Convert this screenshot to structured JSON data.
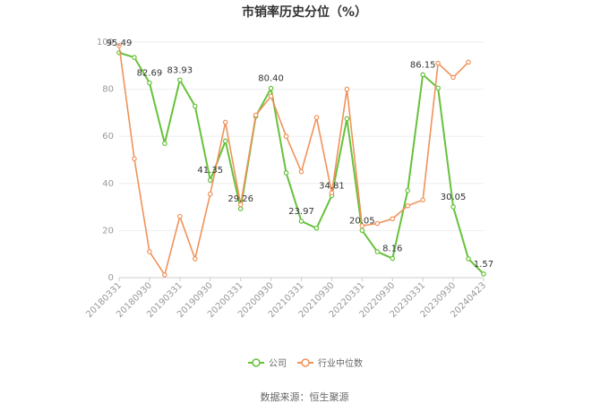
{
  "chart_data": {
    "type": "line",
    "title": "市销率历史分位（%）",
    "ylim": [
      0,
      100
    ],
    "yticks": [
      0,
      20,
      40,
      60,
      80,
      100
    ],
    "x_labels": [
      "20180331",
      "20180930",
      "20190331",
      "20190930",
      "20200331",
      "20200930",
      "20210331",
      "20210930",
      "20220331",
      "20220930",
      "20230331",
      "20230930",
      "20240423"
    ],
    "grid": true,
    "legend_placement": "bottom",
    "series": [
      {
        "name": "公司",
        "color": "#66c23a",
        "values": [
          95.49,
          93.5,
          82.69,
          57.0,
          83.93,
          72.8,
          41.35,
          58.0,
          29.26,
          68.5,
          80.4,
          44.5,
          23.97,
          21.0,
          34.81,
          67.5,
          20.05,
          11.0,
          8.16,
          37.0,
          86.15,
          80.5,
          30.05,
          8.0,
          1.57
        ],
        "labels": {
          "0": "95.49",
          "2": "82.69",
          "4": "83.93",
          "6": "41.35",
          "8": "29.26",
          "10": "80.40",
          "12": "23.97",
          "14": "34.81",
          "16": "20.05",
          "18": "8.16",
          "20": "86.15",
          "22": "30.05",
          "24": "1.57"
        }
      },
      {
        "name": "行业中位数",
        "color": "#f0925a",
        "values": [
          98.5,
          50.5,
          11.0,
          1.2,
          26.0,
          8.0,
          35.5,
          66.0,
          31.0,
          69.0,
          77.0,
          60.0,
          45.0,
          68.0,
          36.0,
          80.0,
          22.0,
          23.0,
          25.0,
          30.5,
          33.0,
          91.0,
          85.0,
          91.5,
          null
        ]
      }
    ]
  },
  "source_text": "数据来源：恒生聚源"
}
